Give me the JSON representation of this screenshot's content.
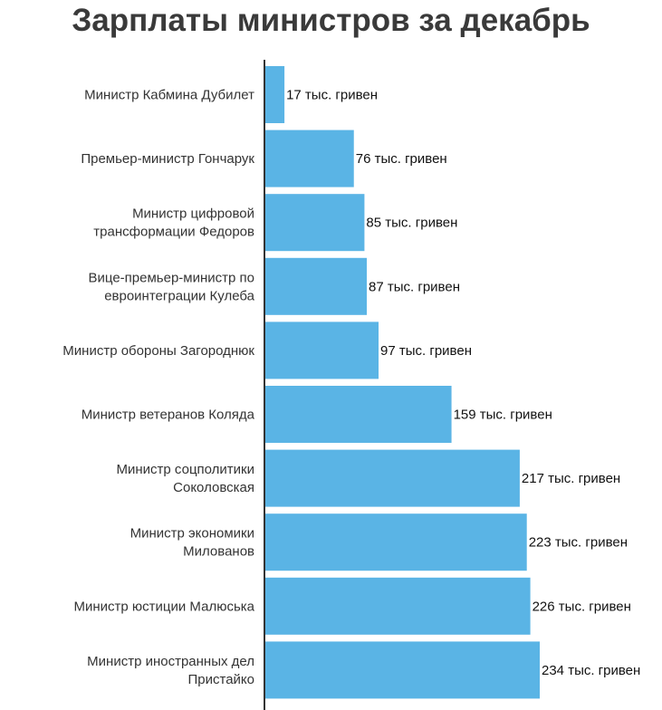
{
  "title": "Зарплаты министров за декабрь",
  "colors": {
    "bar": "#5ab4e5",
    "axis": "#333333",
    "title": "#3a3a3a"
  },
  "chart_data": {
    "type": "bar",
    "orientation": "horizontal",
    "title": "Зарплаты министров за декабрь",
    "unit_suffix": " тыс. гривен",
    "categories": [
      [
        "Министр Кабмина Дубилет"
      ],
      [
        "Премьер-министр Гончарук"
      ],
      [
        "Министр цифровой",
        "трансформации Федоров"
      ],
      [
        "Вице-премьер-министр по",
        "евроинтеграции Кулеба"
      ],
      [
        "Министр обороны Загороднюк"
      ],
      [
        "Министр ветеранов Коляда"
      ],
      [
        "Министр соцполитики",
        "Соколовская"
      ],
      [
        "Министр экономики",
        "Милованов"
      ],
      [
        "Министр юстиции Малюська"
      ],
      [
        "Министр иностранных дел",
        "Пристайко"
      ]
    ],
    "values": [
      17,
      76,
      85,
      87,
      97,
      159,
      217,
      223,
      226,
      234
    ],
    "data_labels": [
      "17 тыс. гривен",
      "76 тыс. гривен",
      "85 тыс. гривен",
      "87 тыс. гривен",
      "97 тыс. гривен",
      "159 тыс. гривен",
      "217 тыс. гривен",
      "223 тыс. гривен",
      "226 тыс. гривен",
      "234 тыс. гривен"
    ],
    "xlim": [
      0,
      234
    ],
    "grid": false,
    "legend": "none"
  }
}
